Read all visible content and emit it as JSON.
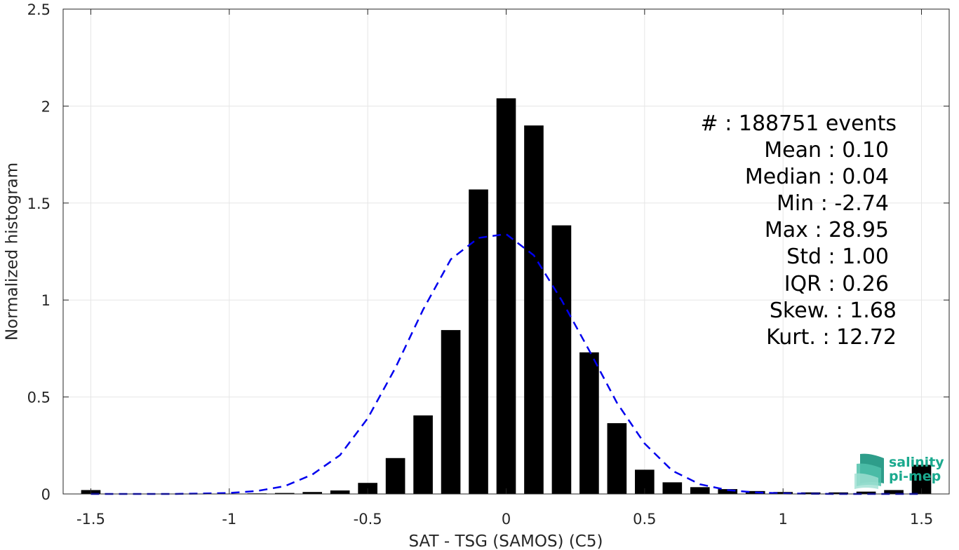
{
  "chart_data": {
    "type": "bar",
    "title": "",
    "xlabel": "SAT - TSG (SAMOS) (C5)",
    "ylabel": "Normalized histogram",
    "xlim": [
      -1.6,
      1.6
    ],
    "ylim": [
      0,
      2.5
    ],
    "xticks": [
      -1.5,
      -1,
      -0.5,
      0,
      0.5,
      1,
      1.5
    ],
    "xtick_labels": [
      "-1.5",
      "-1",
      "-0.5",
      "0",
      "0.5",
      "1",
      "1.5"
    ],
    "yticks": [
      0,
      0.5,
      1,
      1.5,
      2,
      2.5
    ],
    "ytick_labels": [
      "0",
      "0.5",
      "1",
      "1.5",
      "2",
      "2.5"
    ],
    "grid": true,
    "bar_color": "#000000",
    "bar_width": 0.07,
    "bars": {
      "x": [
        -1.5,
        -1.4,
        -1.3,
        -1.2,
        -1.1,
        -1.0,
        -0.9,
        -0.8,
        -0.7,
        -0.6,
        -0.5,
        -0.4,
        -0.3,
        -0.2,
        -0.1,
        0.0,
        0.1,
        0.2,
        0.3,
        0.4,
        0.5,
        0.6,
        0.7,
        0.8,
        0.9,
        1.0,
        1.1,
        1.2,
        1.3,
        1.4,
        1.5
      ],
      "values": [
        0.02,
        0.001,
        0.001,
        0.001,
        0.001,
        0.002,
        0.003,
        0.005,
        0.01,
        0.018,
        0.057,
        0.185,
        0.405,
        0.845,
        1.57,
        2.04,
        1.9,
        1.385,
        0.73,
        0.365,
        0.125,
        0.06,
        0.035,
        0.025,
        0.015,
        0.01,
        0.008,
        0.008,
        0.012,
        0.02,
        0.15
      ]
    },
    "fit_curve": {
      "style": "dashed",
      "color": "#0000ee",
      "x": [
        -1.5,
        -1.4,
        -1.3,
        -1.2,
        -1.1,
        -1.0,
        -0.9,
        -0.8,
        -0.7,
        -0.6,
        -0.5,
        -0.4,
        -0.3,
        -0.2,
        -0.1,
        0.0,
        0.1,
        0.2,
        0.3,
        0.4,
        0.5,
        0.6,
        0.7,
        0.8,
        0.9,
        1.0,
        1.1,
        1.2,
        1.3,
        1.4,
        1.5
      ],
      "values": [
        0.0,
        0.0,
        0.0,
        0.0,
        0.002,
        0.005,
        0.015,
        0.04,
        0.1,
        0.2,
        0.39,
        0.65,
        0.95,
        1.21,
        1.32,
        1.34,
        1.23,
        1.0,
        0.74,
        0.47,
        0.26,
        0.12,
        0.05,
        0.02,
        0.008,
        0.003,
        0.001,
        0.0,
        0.0,
        0.0,
        0.0
      ]
    }
  },
  "stats": [
    {
      "label": "#  : 188751 events"
    },
    {
      "label": "Mean : 0.10"
    },
    {
      "label": "Median : 0.04"
    },
    {
      "label": "Min : -2.74"
    },
    {
      "label": "Max : 28.95"
    },
    {
      "label": "Std : 1.00"
    },
    {
      "label": "IQR : 0.26"
    },
    {
      "label": "Skew. : 1.68"
    },
    {
      "label": "Kurt. : 12.72"
    }
  ],
  "logo": {
    "line1": "salinity",
    "line2": "pi-mep",
    "color": "#1aa98e"
  }
}
